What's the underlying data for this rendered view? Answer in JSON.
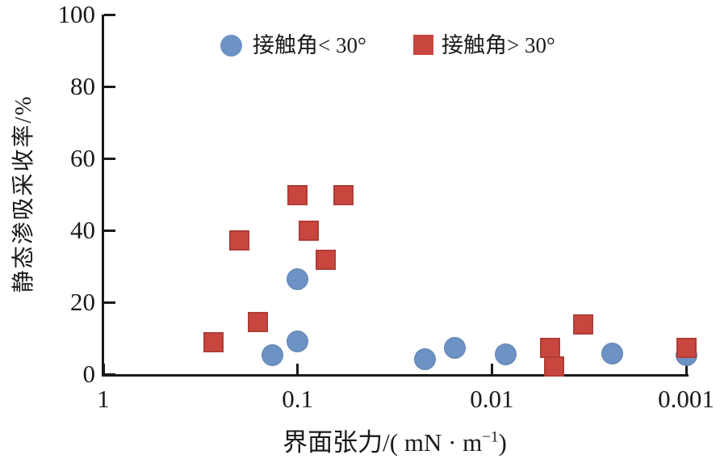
{
  "chart_data": {
    "type": "scatter",
    "title": "",
    "xlabel_full": "界面张力/( mN · m⁻¹)",
    "xlabel_parts": {
      "pre": "界面张力/(",
      "unit": " mN · m",
      "sup": "−1",
      "post": ")"
    },
    "ylabel": "静态渗吸采收率/%",
    "x_scale": "log10-reversed",
    "xlim": [
      1,
      0.001
    ],
    "ylim": [
      0,
      100
    ],
    "grid": false,
    "legend_position": "top-inside",
    "x_ticks": [
      {
        "value": 1,
        "label": "1"
      },
      {
        "value": 0.1,
        "label": "0.1"
      },
      {
        "value": 0.01,
        "label": "0.01"
      },
      {
        "value": 0.001,
        "label": "0.001"
      }
    ],
    "y_ticks": [
      {
        "value": 0,
        "label": "0"
      },
      {
        "value": 20,
        "label": "20"
      },
      {
        "value": 40,
        "label": "40"
      },
      {
        "value": 60,
        "label": "60"
      },
      {
        "value": 80,
        "label": "80"
      },
      {
        "value": 100,
        "label": "100"
      }
    ],
    "series": [
      {
        "name": "接触角< 30°",
        "marker": "circle",
        "color": "#6D93C5",
        "points": [
          [
            0.1,
            26.5
          ],
          [
            0.1,
            9.2
          ],
          [
            0.135,
            5.2
          ],
          [
            0.022,
            4.2
          ],
          [
            0.0155,
            7.2
          ],
          [
            0.0085,
            5.6
          ],
          [
            0.0024,
            5.8
          ],
          [
            0.001,
            5.2
          ]
        ]
      },
      {
        "name": "接触角> 30°",
        "marker": "square",
        "color": "#C9463F",
        "points": [
          [
            0.27,
            8.8
          ],
          [
            0.2,
            37.3
          ],
          [
            0.16,
            14.4
          ],
          [
            0.1,
            49.7
          ],
          [
            0.088,
            39.8
          ],
          [
            0.072,
            31.9
          ],
          [
            0.058,
            49.7
          ],
          [
            0.005,
            7.2
          ],
          [
            0.0048,
            2.2
          ],
          [
            0.0034,
            13.9
          ],
          [
            0.001,
            7.4
          ]
        ]
      }
    ]
  }
}
